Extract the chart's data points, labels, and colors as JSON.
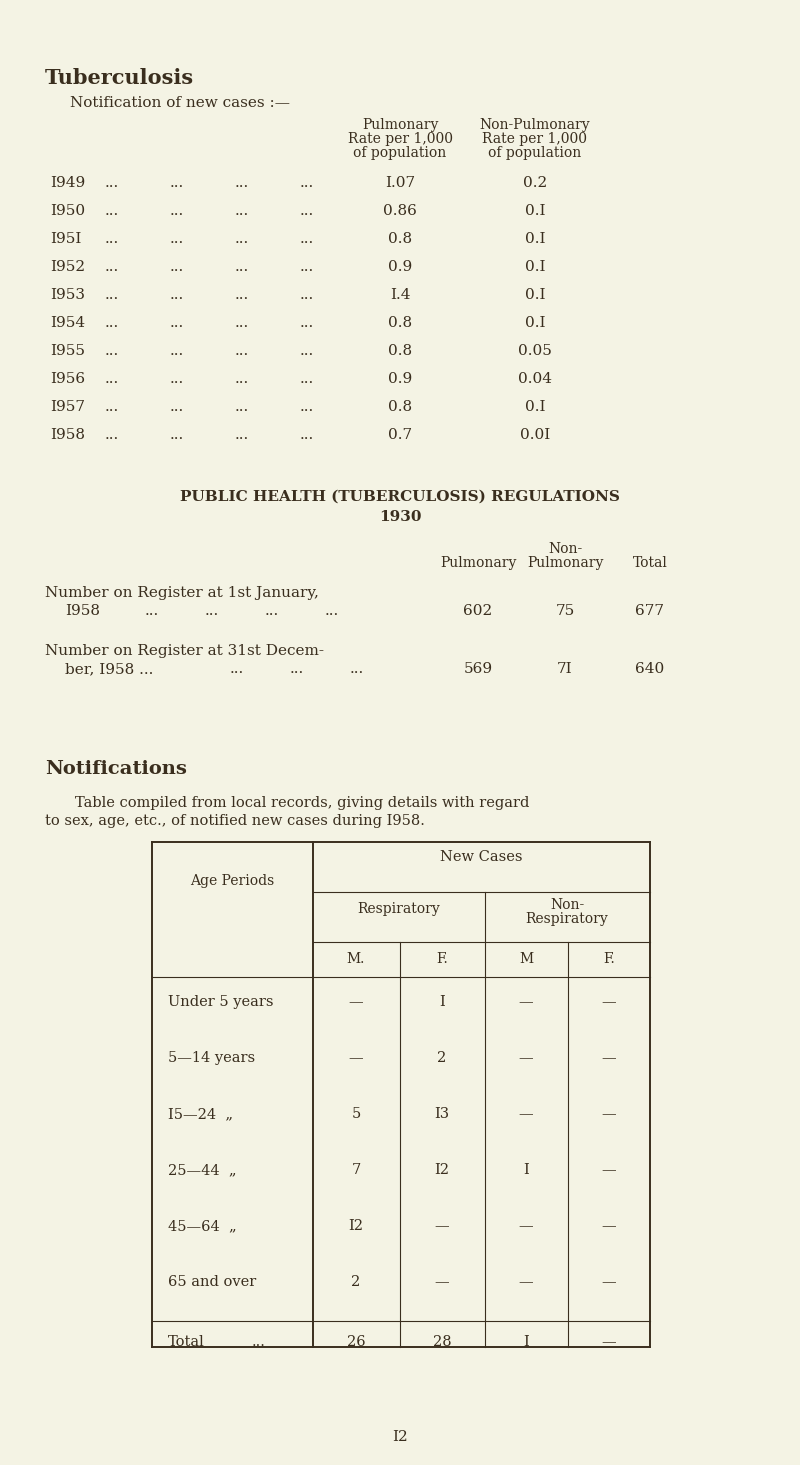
{
  "bg_color": "#f4f3e4",
  "text_color": "#3a2e1e",
  "title1": "Tuberculosis",
  "subtitle1": "Notification of new cases :—",
  "years": [
    "I949",
    "I950",
    "I95I",
    "I952",
    "I953",
    "I954",
    "I955",
    "I956",
    "I957",
    "I958"
  ],
  "pulmonary_rates": [
    "I.07",
    "0.86",
    "0.8",
    "0.9",
    "I.4",
    "0.8",
    "0.8",
    "0.9",
    "0.8",
    "0.7"
  ],
  "non_pulmonary_rates": [
    "0.2",
    "0.I",
    "0.I",
    "0.I",
    "0.I",
    "0.I",
    "0.05",
    "0.04",
    "0.I",
    "0.0I"
  ],
  "section2_title1": "PUBLIC HEALTH (TUBERCULOSIS) REGULATIONS",
  "section2_title2": "1930",
  "reg_row1_label1": "Number on Register at 1st January,",
  "reg_row1_label2": "I958",
  "reg_row1_dots": "...         ...         ...         ...",
  "reg_row1_vals": [
    "602",
    "75",
    "677"
  ],
  "reg_row2_label1": "Number on Register at 31st Decem-",
  "reg_row2_label2": "ber, I958 ...",
  "reg_row2_dots": "...         ...         ...",
  "reg_row2_vals": [
    "569",
    "7I",
    "640"
  ],
  "notif_title": "Notifications",
  "notif_line1": "Table compiled from local records, giving details with regard",
  "notif_line2": "to sex, age, etc., of notified new cases during I958.",
  "table_rows": [
    {
      "label": "Under 5 years",
      "resp_m": "—",
      "resp_f": "I",
      "nonresp_m": "—",
      "nonresp_f": "—"
    },
    {
      "label": "5—14 years",
      "resp_m": "—",
      "resp_f": "2",
      "nonresp_m": "—",
      "nonresp_f": "—"
    },
    {
      "label": "I5—24  „",
      "resp_m": "5",
      "resp_f": "I3",
      "nonresp_m": "—",
      "nonresp_f": "—"
    },
    {
      "label": "25—44  „",
      "resp_m": "7",
      "resp_f": "I2",
      "nonresp_m": "I",
      "nonresp_f": "—"
    },
    {
      "label": "45—64  „",
      "resp_m": "I2",
      "resp_f": "—",
      "nonresp_m": "—",
      "nonresp_f": "—"
    },
    {
      "label": "65 and over",
      "resp_m": "2",
      "resp_f": "—",
      "nonresp_m": "—",
      "nonresp_f": "—"
    }
  ],
  "table_total_resp_m": "26",
  "table_total_resp_f": "28",
  "table_total_nonresp_m": "I",
  "table_total_nonresp_f": "—",
  "page_number": "I2"
}
